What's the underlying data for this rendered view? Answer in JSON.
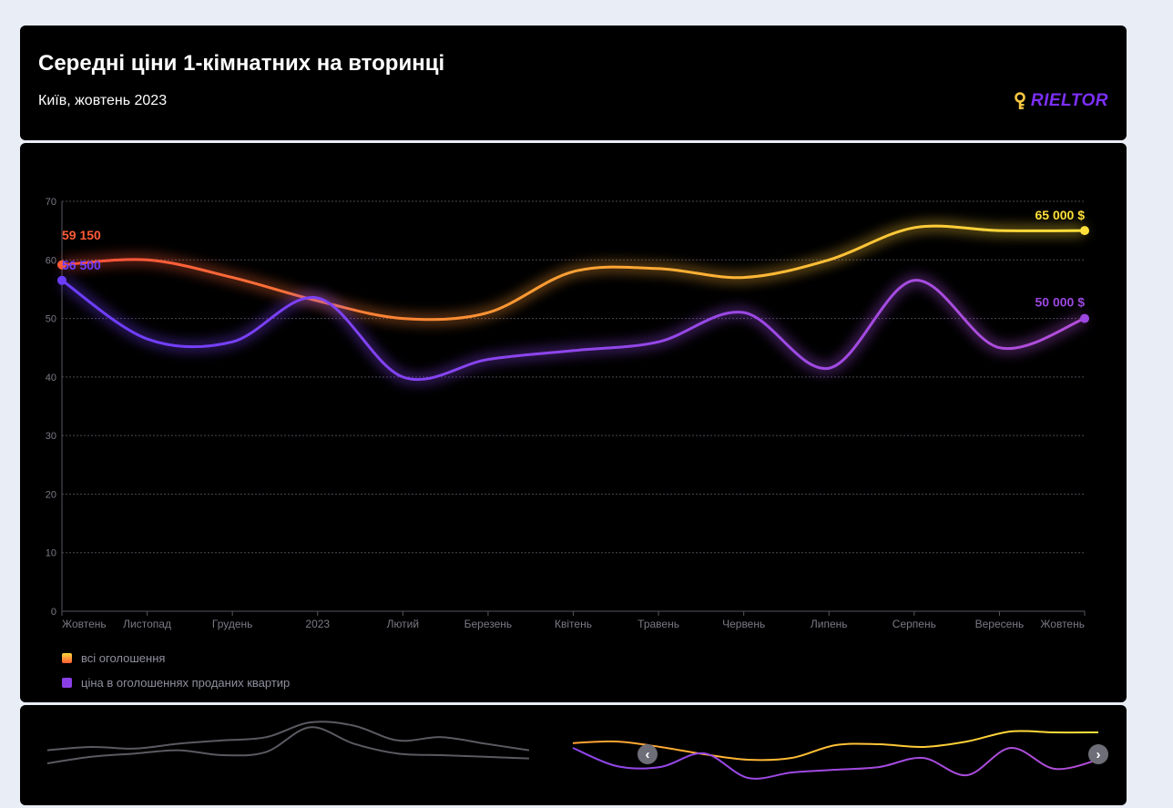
{
  "header": {
    "title": "Середні ціни 1-кімнатних на вторинці",
    "subtitle": "Київ, жовтень 2023",
    "logo_text": "RIELTOR"
  },
  "colors": {
    "accent": "#7b2ff7",
    "logo_key": "#f5c742",
    "all_listings_start": "#ff5a36",
    "all_listings_end": "#ffd93b",
    "sold": "#9b47e0",
    "sold_start": "#6c3dff"
  },
  "chart_data": {
    "type": "line",
    "categories": [
      "Жовтень",
      "Листопад",
      "Грудень",
      "2023",
      "Лютий",
      "Березень",
      "Квітень",
      "Травень",
      "Червень",
      "Липень",
      "Серпень",
      "Вересень",
      "Жовтень"
    ],
    "ylim": [
      0,
      70
    ],
    "yticks": [
      "0",
      "10",
      "20",
      "30",
      "40",
      "50",
      "60",
      "70"
    ],
    "grid": true,
    "legend_position": "bottom-left",
    "series": [
      {
        "name": "всі оголошення",
        "values": [
          59.15,
          60.0,
          57.0,
          53.0,
          50.0,
          51.0,
          58.0,
          58.5,
          57.0,
          60.0,
          65.5,
          65.0,
          65.0
        ],
        "start_label": "59 150",
        "end_label": "65 000 $"
      },
      {
        "name": "ціна в оголошеннях проданих квартир",
        "values": [
          56.5,
          46.5,
          46.0,
          53.5,
          40.0,
          43.0,
          44.5,
          46.0,
          51.0,
          41.5,
          56.5,
          45.0,
          50.0
        ],
        "start_label": "56 500",
        "end_label": "50 000 $"
      }
    ]
  },
  "navigator": {
    "prev_icon": "chevron-left-icon",
    "next_icon": "chevron-right-icon",
    "prev_symbol": "‹",
    "next_symbol": "›"
  }
}
